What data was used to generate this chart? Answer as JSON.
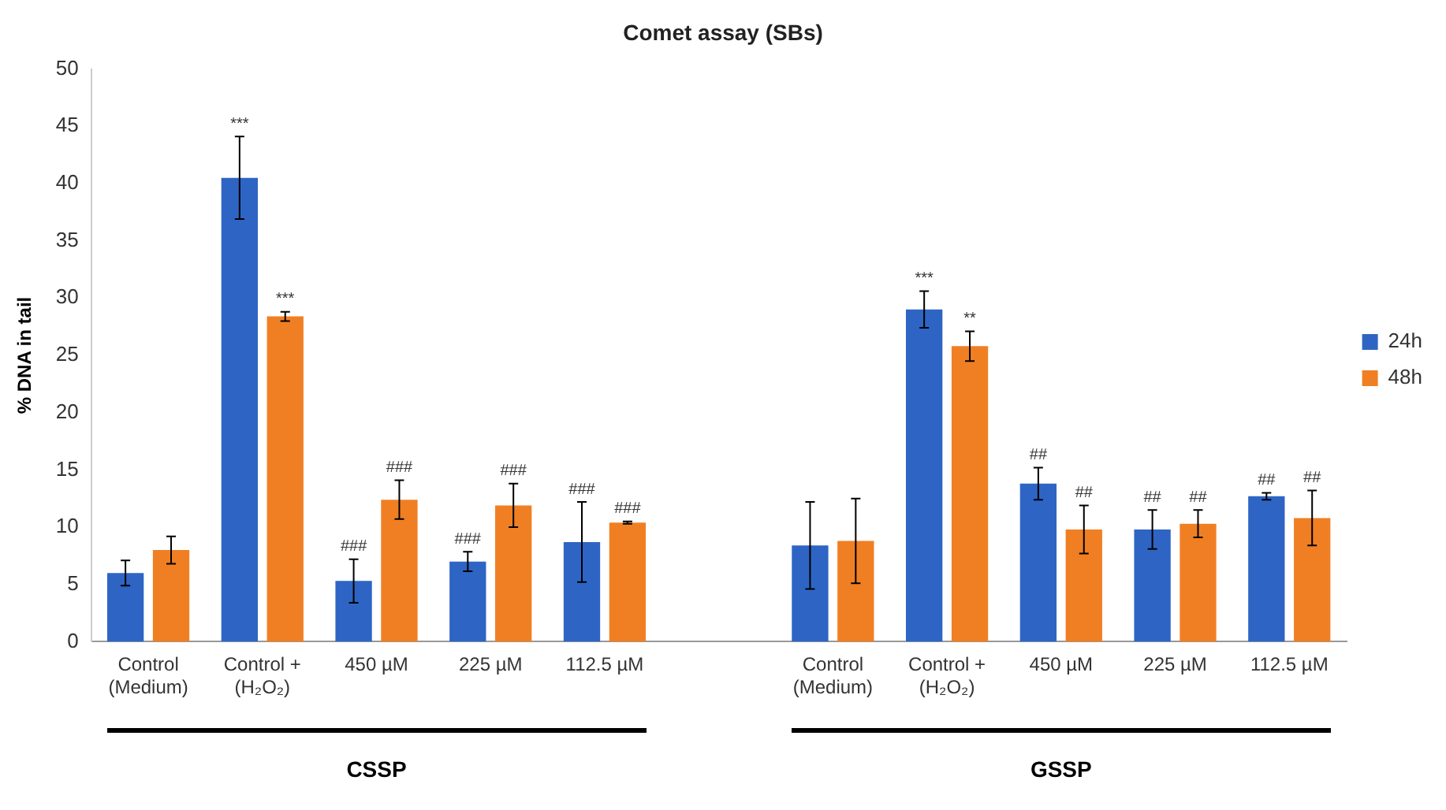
{
  "chart_data": {
    "type": "bar",
    "title": "Comet assay (SBs)",
    "ylabel": "% DNA in tail",
    "categories": [
      "Control (Medium)",
      "Control + (H₂O₂)",
      "450 µM",
      "225 µM",
      "112.5 µM",
      null,
      "Control (Medium)",
      "Control + (H₂O₂)",
      "450 µM",
      "225 µM",
      "112.5 µM"
    ],
    "series": [
      {
        "name": "24h",
        "color": "#2e65c4",
        "values": [
          6.0,
          40.5,
          5.3,
          7.0,
          8.7,
          null,
          8.4,
          29.0,
          13.8,
          9.8,
          12.7
        ],
        "errors": [
          1.1,
          3.6,
          1.9,
          0.85,
          3.5,
          null,
          3.8,
          1.6,
          1.4,
          1.7,
          0.3
        ],
        "value_labels": [
          null,
          "***",
          "###",
          "###",
          "###",
          null,
          null,
          "***",
          "##",
          "##",
          "##"
        ]
      },
      {
        "name": "48h",
        "color": "#f07f24",
        "values": [
          8.0,
          28.4,
          12.4,
          11.9,
          10.4,
          null,
          8.8,
          25.8,
          9.8,
          10.3,
          10.8
        ],
        "errors": [
          1.2,
          0.4,
          1.7,
          1.9,
          0.1,
          null,
          3.7,
          1.3,
          2.1,
          1.2,
          2.4
        ],
        "value_labels": [
          null,
          "***",
          "###",
          "###",
          "###",
          null,
          null,
          "**",
          "##",
          "##",
          "##"
        ]
      }
    ],
    "ylim": [
      0,
      50
    ],
    "yticks": [
      0,
      5,
      10,
      15,
      20,
      25,
      30,
      35,
      40,
      45,
      50
    ],
    "grid": false,
    "legend": "right",
    "annotations": [
      "CSSP",
      "GSSP"
    ]
  }
}
